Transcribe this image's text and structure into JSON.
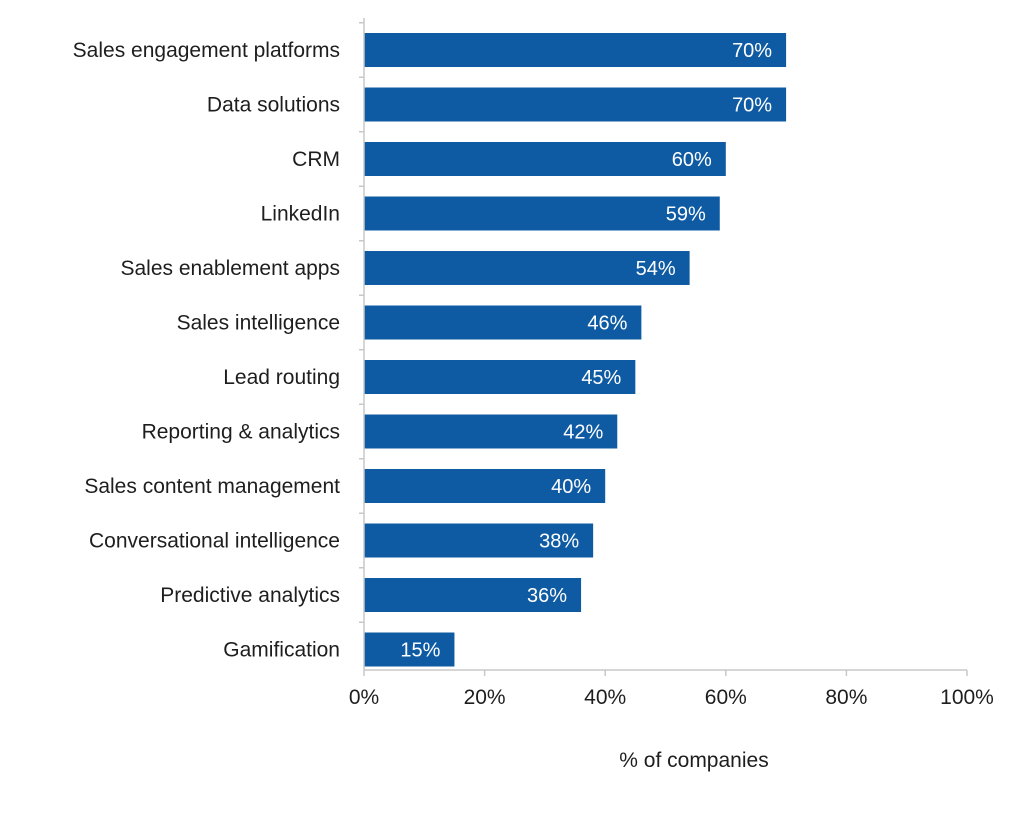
{
  "chart_data": {
    "type": "bar",
    "orientation": "horizontal",
    "categories": [
      "Sales engagement platforms",
      "Data solutions",
      "CRM",
      "LinkedIn",
      "Sales enablement apps",
      "Sales intelligence",
      "Lead routing",
      "Reporting & analytics",
      "Sales content management",
      "Conversational intelligence",
      "Predictive analytics",
      "Gamification"
    ],
    "values": [
      70,
      70,
      60,
      59,
      54,
      46,
      45,
      42,
      40,
      38,
      36,
      15
    ],
    "value_labels": [
      "70%",
      "70%",
      "60%",
      "59%",
      "54%",
      "46%",
      "45%",
      "42%",
      "40%",
      "38%",
      "36%",
      "15%"
    ],
    "title": "",
    "xlabel": "% of companies",
    "ylabel": "",
    "xlim": [
      0,
      100
    ],
    "x_ticks": [
      0,
      20,
      40,
      60,
      80,
      100
    ],
    "x_tick_labels": [
      "0%",
      "20%",
      "40%",
      "60%",
      "80%",
      "100%"
    ],
    "grid": false,
    "legend": "none",
    "bar_color": "#0f5ba3",
    "label_color": "#ffffff",
    "axis_color": "#c8c8c8"
  }
}
